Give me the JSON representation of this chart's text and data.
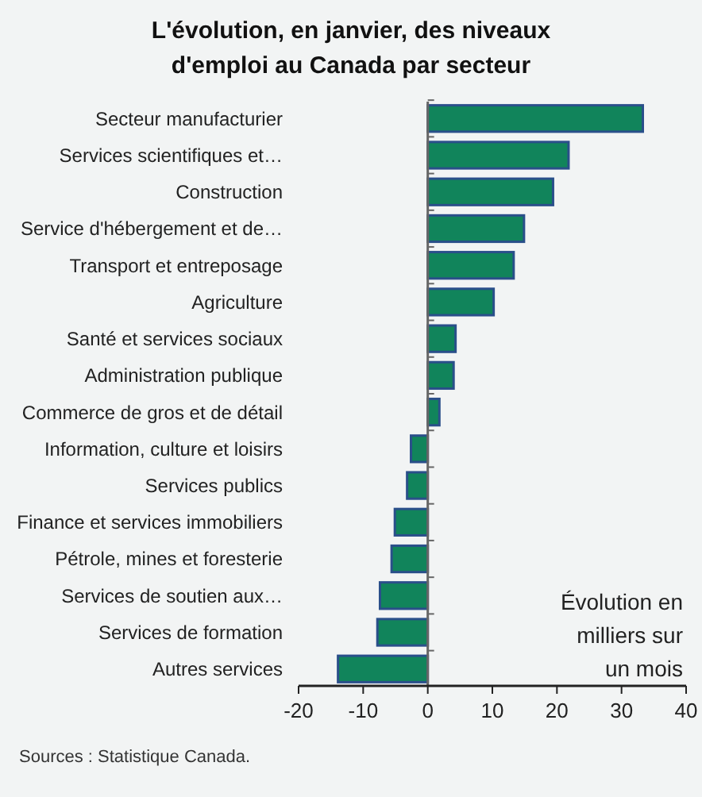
{
  "chart_data": {
    "type": "bar",
    "orientation": "horizontal",
    "title": "L'évolution, en janvier, des niveaux d'emploi au Canada par secteur",
    "categories": [
      "Secteur manufacturier",
      "Services scientifiques et…",
      "Construction",
      "Service d'hébergement et de…",
      "Transport et entreposage",
      "Agriculture",
      "Santé et services sociaux",
      "Administration publique",
      "Commerce de gros et de détail",
      "Information, culture et loisirs",
      "Services publics",
      "Finance et services immobiliers",
      "Pétrole, mines et foresterie",
      "Services de soutien aux…",
      "Services de formation",
      "Autres services"
    ],
    "values": [
      33.3,
      21.8,
      19.4,
      14.9,
      13.3,
      10.2,
      4.3,
      4.0,
      1.8,
      -2.6,
      -3.2,
      -5.1,
      -5.6,
      -7.4,
      -7.8,
      -13.9
    ],
    "color": "#11845b",
    "xlim": [
      -20,
      40
    ],
    "xticks": [
      -20,
      -10,
      0,
      10,
      20,
      30,
      40
    ],
    "xlabel": "Évolution en milliers sur un mois",
    "annotations": [
      "Sources : Statistique Canada."
    ]
  }
}
